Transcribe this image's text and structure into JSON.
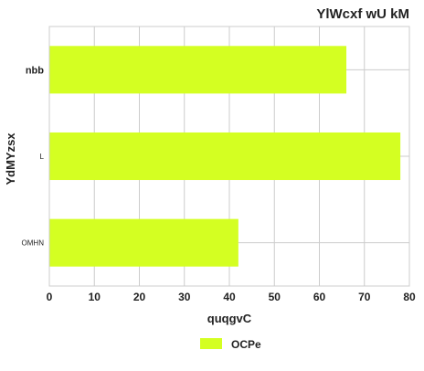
{
  "chart_data": {
    "type": "bar",
    "orientation": "horizontal",
    "title": "YlWcxf wU kM",
    "xlabel": "quqgvC",
    "ylabel": "YdMYzsx",
    "categories": [
      "OMHN",
      "L",
      "nbb"
    ],
    "series": [
      {
        "name": "OCPe",
        "values": [
          42,
          78,
          66
        ],
        "color": "#d4ff22"
      }
    ],
    "xlim": [
      0,
      80
    ],
    "xticks": [
      0,
      10,
      20,
      30,
      40,
      50,
      60,
      70,
      80
    ],
    "grid": true,
    "legend_position": "bottom-center"
  }
}
